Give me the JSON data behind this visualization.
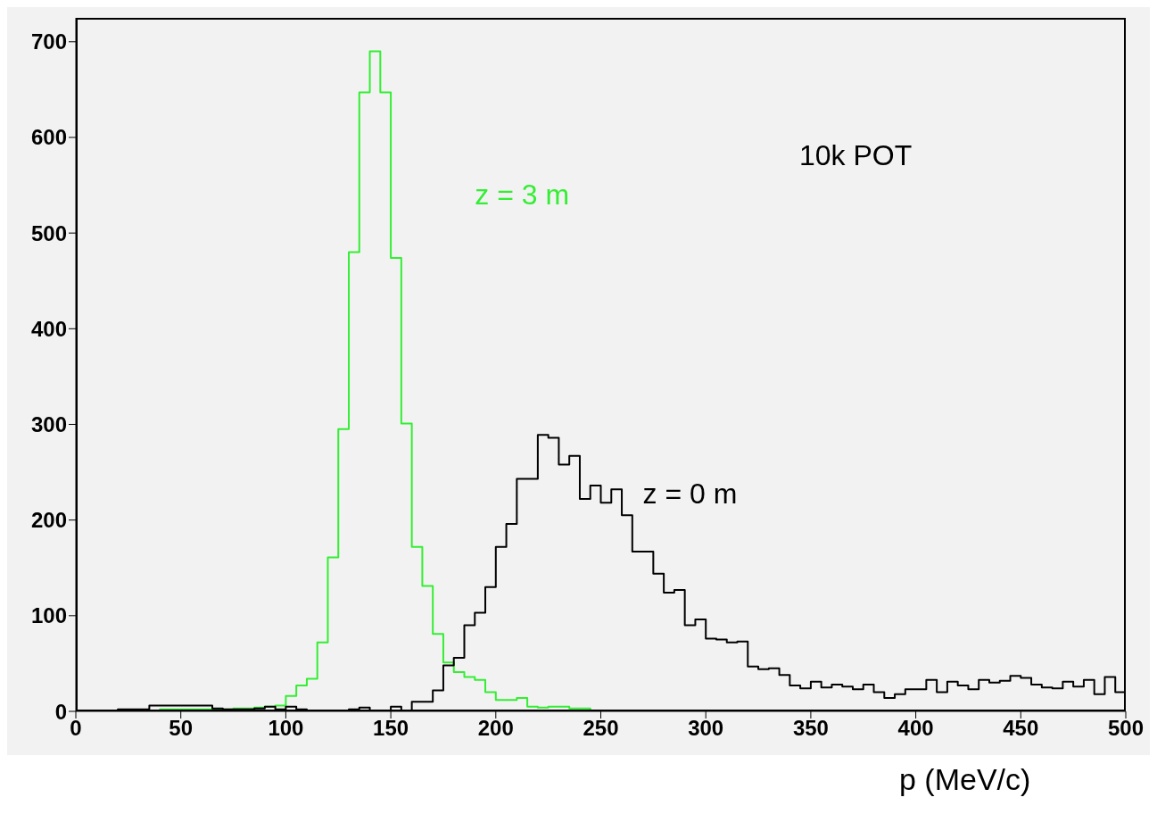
{
  "chart_data": {
    "type": "histogram",
    "xlabel": "p (MeV/c)",
    "annotations": [
      "10k POT"
    ],
    "bins": [
      0,
      5,
      10,
      15,
      20,
      25,
      30,
      35,
      40,
      45,
      50,
      55,
      60,
      65,
      70,
      75,
      80,
      85,
      90,
      95,
      100,
      105,
      110,
      115,
      120,
      125,
      130,
      135,
      140,
      145,
      150,
      155,
      160,
      165,
      170,
      175,
      180,
      185,
      190,
      195,
      200,
      205,
      210,
      215,
      220,
      225,
      230,
      235,
      240,
      245,
      250,
      255,
      260,
      265,
      270,
      275,
      280,
      285,
      290,
      295,
      300,
      305,
      310,
      315,
      320,
      325,
      330,
      335,
      340,
      345,
      350,
      355,
      360,
      365,
      370,
      375,
      380,
      385,
      390,
      395,
      400,
      405,
      410,
      415,
      420,
      425,
      430,
      435,
      440,
      445,
      450,
      455,
      460,
      465,
      470,
      475,
      480,
      485,
      490,
      495,
      500
    ],
    "series": [
      {
        "name": "z = 3 m",
        "color": "#33ee33",
        "values": [
          0,
          0,
          0,
          0,
          0,
          0,
          1,
          1,
          2,
          2,
          2,
          2,
          2,
          2,
          2,
          3,
          3,
          4,
          5,
          6,
          16,
          27,
          34,
          72,
          161,
          295,
          480,
          647,
          690,
          647,
          474,
          301,
          172,
          131,
          81,
          51,
          41,
          36,
          33,
          20,
          12,
          12,
          14,
          5,
          4,
          5,
          5,
          3,
          3,
          0,
          0,
          0,
          0,
          0,
          0,
          0,
          0,
          0,
          1,
          0,
          0,
          0,
          0,
          0,
          0,
          0,
          0,
          0,
          0,
          0,
          0,
          0,
          0,
          1,
          0,
          0,
          0,
          0,
          0,
          1,
          0,
          0,
          0,
          0,
          0,
          0,
          0,
          0,
          0,
          0,
          0,
          0,
          0,
          0,
          0,
          0,
          0,
          0,
          0,
          0
        ]
      },
      {
        "name": "z = 0 m",
        "color": "#000000",
        "values": [
          0,
          0,
          0,
          0,
          2,
          2,
          2,
          6,
          6,
          6,
          6,
          6,
          6,
          3,
          2,
          2,
          2,
          3,
          5,
          2,
          5,
          2,
          1,
          1,
          1,
          1,
          2,
          4,
          0,
          0,
          5,
          1,
          10,
          10,
          22,
          48,
          56,
          90,
          103,
          130,
          172,
          196,
          243,
          243,
          289,
          286,
          258,
          267,
          222,
          236,
          218,
          232,
          205,
          167,
          167,
          144,
          124,
          127,
          90,
          96,
          76,
          75,
          72,
          73,
          47,
          44,
          45,
          38,
          27,
          24,
          31,
          25,
          28,
          26,
          23,
          28,
          20,
          14,
          18,
          23,
          23,
          33,
          20,
          31,
          27,
          23,
          33,
          30,
          32,
          37,
          35,
          28,
          25,
          24,
          31,
          26,
          33,
          18,
          36,
          20
        ]
      }
    ],
    "xlim": [
      0,
      500
    ],
    "xticks": [
      0,
      50,
      100,
      150,
      200,
      250,
      300,
      350,
      400,
      450,
      500
    ],
    "ylim": [
      0,
      725
    ],
    "yticks": [
      0,
      100,
      200,
      300,
      400,
      500,
      600,
      700
    ],
    "line_style": "solid"
  }
}
